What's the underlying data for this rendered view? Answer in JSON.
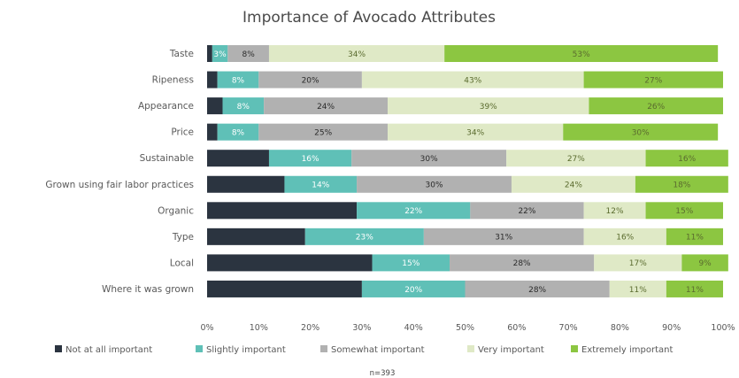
{
  "chart_data": {
    "type": "bar",
    "orientation": "horizontal",
    "stacked": true,
    "title": "Importance of Avocado Attributes",
    "categories": [
      "Taste",
      "Ripeness",
      "Appearance",
      "Price",
      "Sustainable",
      "Grown using fair labor practices",
      "Organic",
      "Type",
      "Local",
      "Where it was grown"
    ],
    "series": [
      {
        "name": "Not at all important",
        "color": "#2b3440",
        "values": [
          1,
          2,
          3,
          2,
          12,
          15,
          29,
          19,
          32,
          30
        ],
        "labels": [
          "",
          "",
          "",
          "",
          "",
          "",
          "",
          "",
          "",
          ""
        ]
      },
      {
        "name": "Slightly important",
        "color": "#5fc0b7",
        "values": [
          3,
          8,
          8,
          8,
          16,
          14,
          22,
          23,
          15,
          20
        ],
        "labels": [
          "3%",
          "8%",
          "8%",
          "8%",
          "16%",
          "14%",
          "22%",
          "23%",
          "15%",
          "20%"
        ]
      },
      {
        "name": "Somewhat important",
        "color": "#b1b1b1",
        "values": [
          8,
          20,
          24,
          25,
          30,
          30,
          22,
          31,
          28,
          28
        ],
        "labels": [
          "8%",
          "20%",
          "24%",
          "25%",
          "30%",
          "30%",
          "22%",
          "31%",
          "28%",
          "28%"
        ]
      },
      {
        "name": "Very important",
        "color": "#dfe9c6",
        "values": [
          34,
          43,
          39,
          34,
          27,
          24,
          12,
          16,
          17,
          11
        ],
        "labels": [
          "34%",
          "43%",
          "39%",
          "34%",
          "27%",
          "24%",
          "12%",
          "16%",
          "17%",
          "11%"
        ]
      },
      {
        "name": "Extremely important",
        "color": "#8cc641",
        "values": [
          53,
          27,
          26,
          30,
          16,
          18,
          15,
          11,
          9,
          11
        ],
        "labels": [
          "53%",
          "27%",
          "26%",
          "30%",
          "16%",
          "18%",
          "15%",
          "11%",
          "9%",
          "11%"
        ]
      }
    ],
    "xlim": [
      0,
      100
    ],
    "xticks": [
      "0%",
      "10%",
      "20%",
      "30%",
      "40%",
      "50%",
      "60%",
      "70%",
      "80%",
      "90%",
      "100%"
    ],
    "legend_position": "bottom",
    "grid": false,
    "annotations": [
      "n=393"
    ]
  }
}
